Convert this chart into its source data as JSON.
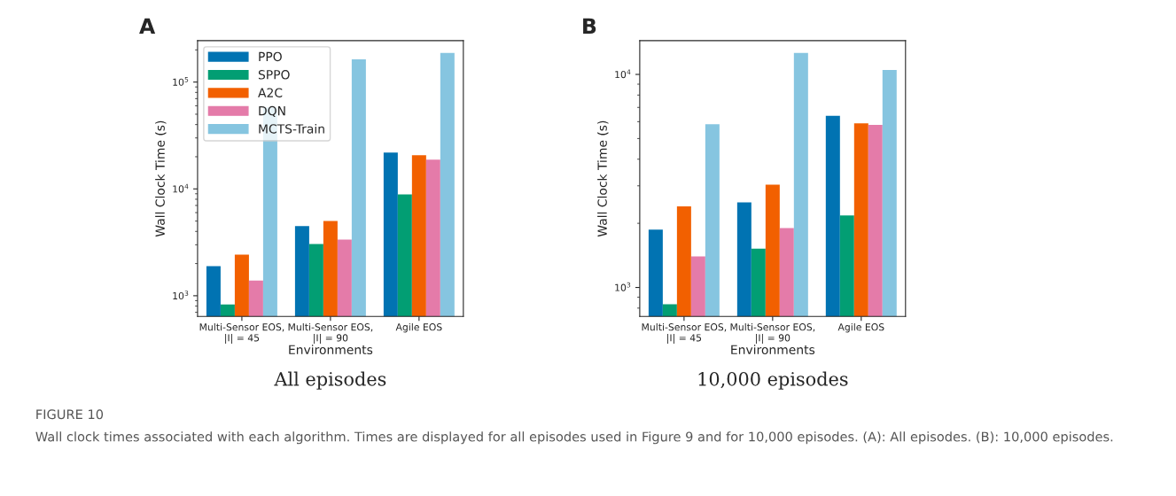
{
  "chart_data": [
    {
      "type": "bar",
      "title": "A",
      "xlabel": "Environments",
      "ylabel": "Wall Clock Time (s)",
      "categories": [
        "Multi-Sensor EOS,\n|I| = 45",
        "Multi-Sensor EOS,\n|I| = 90",
        "Agile EOS"
      ],
      "series": [
        {
          "name": "PPO",
          "color": "#0173b2",
          "values": [
            1890,
            4480,
            21900
          ]
        },
        {
          "name": "SPPO",
          "color": "#029e73",
          "values": [
            830,
            3050,
            8900
          ]
        },
        {
          "name": "A2C",
          "color": "#f26000",
          "values": [
            2430,
            5020,
            20700
          ]
        },
        {
          "name": "DQN",
          "color": "#e47ba9",
          "values": [
            1390,
            3360,
            18800
          ]
        },
        {
          "name": "MCTS-Train",
          "color": "#86c5e0",
          "values": [
            58000,
            163000,
            187000
          ]
        }
      ],
      "log": "y",
      "ylim": [
        640,
        244000
      ],
      "yticks": [
        {
          "value": 1000,
          "label": "10$^{3}$"
        },
        {
          "value": 10000,
          "label": "10$^{4}$"
        },
        {
          "value": 100000,
          "label": "10$^{5}$"
        }
      ],
      "legend": "top left",
      "annotations": [
        "All episodes",
        "FIGURE 10",
        "Wall clock times associated with each algorithm. Times are displayed for all episodes used in Figure 9 and for 10,000 episodes. (A): All episodes. (B): 10,000 episodes."
      ]
    },
    {
      "type": "bar",
      "title": "B",
      "xlabel": "Environments",
      "ylabel": "Wall Clock Time (s)",
      "categories": [
        "Multi-Sensor EOS,\n|I| = 45",
        "Multi-Sensor EOS,\n|I| = 90",
        "Agile EOS"
      ],
      "series": [
        {
          "color": "#0173b2",
          "values": [
            1870,
            2510,
            6400
          ]
        },
        {
          "color": "#029e73",
          "values": [
            834,
            1520,
            2180
          ]
        },
        {
          "color": "#f26000",
          "values": [
            2400,
            3040,
            5900
          ]
        },
        {
          "color": "#e47ba9",
          "values": [
            1400,
            1900,
            5800
          ]
        },
        {
          "color": "#86c5e0",
          "values": [
            5840,
            12600,
            10500
          ]
        }
      ],
      "log": "y",
      "ylim": [
        731,
        14400
      ],
      "yticks": [
        {
          "value": 1000,
          "label": "10$^{3}$"
        },
        {
          "value": 10000,
          "label": "10$^{4}$"
        }
      ],
      "annotations": [
        "10,000 episodes"
      ]
    }
  ]
}
